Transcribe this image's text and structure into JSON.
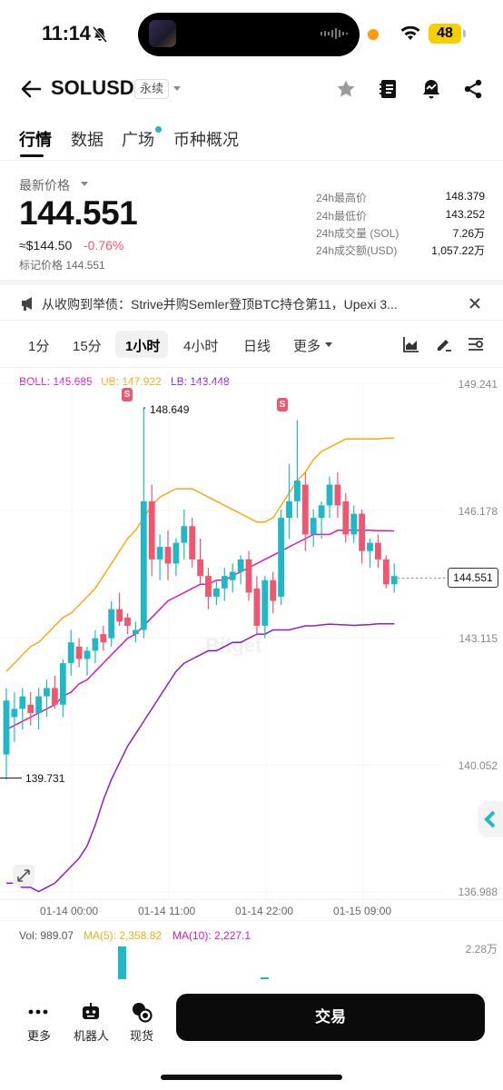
{
  "status_bar": {
    "time": "11:14",
    "battery": "48"
  },
  "header": {
    "symbol": "SOLUSD",
    "contract_type": "永续"
  },
  "tabs": [
    "行情",
    "数据",
    "广场",
    "币种概况"
  ],
  "price": {
    "label": "最新价格",
    "last": "144.551",
    "usd_equiv": "≈$144.50",
    "change": "-0.76%",
    "mark": "标记价格 144.551"
  },
  "stats": [
    {
      "key": "24h最高价",
      "value": "148.379"
    },
    {
      "key": "24h最低价",
      "value": "143.252"
    },
    {
      "key": "24h成交量 (SOL)",
      "value": "7.26万"
    },
    {
      "key": "24h成交额(USD)",
      "value": "1,057.22万"
    }
  ],
  "news_ticker": "从收购到举债：Strive并购Semler登顶BTC持仓第11，Upexi 3...",
  "intervals": [
    "1分",
    "15分",
    "1小时",
    "4小时",
    "日线",
    "更多"
  ],
  "legend": {
    "boll": "BOLL: 145.685",
    "ub": "UB: 147.922",
    "lb": "LB: 143.448"
  },
  "y_axis": [
    "149.241",
    "146.178",
    "143.115",
    "140.052",
    "136.988"
  ],
  "x_axis": [
    "01-14 00:00",
    "01-14 11:00",
    "01-14 22:00",
    "01-15 09:00"
  ],
  "annotations": {
    "high": "148.649",
    "low": "139.731",
    "current": "144.551",
    "signal": "S"
  },
  "watermark": "Bitget",
  "volume": {
    "vol": "Vol: 989.07",
    "ma5": "MA(5): 2,358.82",
    "ma10": "MA(10): 2,227.1",
    "max": "2.28万"
  },
  "bottom_bar": {
    "more": "更多",
    "robot": "机器人",
    "spot": "现货",
    "trade": "交易"
  },
  "colors": {
    "up": "#20b8c8",
    "down": "#f0566e",
    "ub": "#f2ac16",
    "boll": "#d81ab8",
    "lb": "#8a1ed6"
  },
  "chart_data": {
    "type": "candlestick",
    "title": "",
    "ylim": [
      136.988,
      149.241
    ],
    "x_ticks": [
      "01-14 00:00",
      "01-14 11:00",
      "01-14 22:00",
      "01-15 09:00"
    ],
    "candles": [
      [
        140.3,
        141.9,
        139.7,
        141.6
      ],
      [
        141.2,
        141.8,
        140.6,
        141.4
      ],
      [
        141.4,
        141.9,
        140.9,
        141.7
      ],
      [
        141.5,
        141.8,
        141.0,
        141.3
      ],
      [
        141.3,
        141.9,
        140.9,
        141.7
      ],
      [
        141.7,
        142.1,
        141.2,
        141.9
      ],
      [
        141.9,
        142.2,
        141.4,
        141.5
      ],
      [
        141.5,
        142.6,
        141.2,
        142.5
      ],
      [
        142.5,
        143.3,
        142.2,
        143.0
      ],
      [
        142.9,
        143.1,
        142.4,
        142.6
      ],
      [
        142.6,
        142.9,
        142.2,
        142.8
      ],
      [
        142.8,
        143.3,
        142.5,
        143.1
      ],
      [
        143.2,
        143.4,
        142.8,
        143.0
      ],
      [
        143.1,
        144.0,
        142.9,
        143.8
      ],
      [
        143.8,
        144.2,
        143.4,
        143.5
      ],
      [
        143.6,
        143.7,
        143.2,
        143.4
      ],
      [
        143.2,
        143.5,
        143.0,
        143.3
      ],
      [
        143.3,
        148.65,
        143.1,
        146.4
      ],
      [
        146.4,
        146.8,
        144.6,
        145.0
      ],
      [
        145.0,
        145.6,
        144.5,
        145.3
      ],
      [
        145.3,
        145.7,
        144.5,
        144.9
      ],
      [
        144.9,
        145.5,
        144.6,
        145.4
      ],
      [
        145.4,
        146.2,
        145.0,
        145.8
      ],
      [
        145.8,
        146.0,
        144.8,
        145.0
      ],
      [
        145.0,
        145.5,
        144.4,
        144.6
      ],
      [
        144.6,
        144.8,
        143.8,
        144.1
      ],
      [
        144.1,
        144.5,
        143.9,
        144.3
      ],
      [
        144.3,
        144.8,
        144.0,
        144.6
      ],
      [
        144.5,
        144.9,
        144.2,
        144.7
      ],
      [
        144.7,
        145.1,
        144.4,
        145.0
      ],
      [
        145.0,
        145.2,
        144.0,
        144.2
      ],
      [
        144.3,
        144.6,
        143.2,
        143.4
      ],
      [
        143.4,
        144.6,
        143.1,
        144.5
      ],
      [
        144.5,
        144.7,
        143.7,
        144.0
      ],
      [
        144.1,
        146.2,
        143.9,
        146.0
      ],
      [
        146.0,
        147.3,
        145.5,
        146.4
      ],
      [
        146.4,
        148.35,
        146.0,
        146.9
      ],
      [
        146.8,
        147.1,
        145.2,
        145.6
      ],
      [
        145.6,
        146.2,
        145.3,
        146.0
      ],
      [
        146.0,
        146.4,
        145.5,
        146.3
      ],
      [
        146.3,
        147.0,
        146.0,
        146.8
      ],
      [
        146.8,
        147.1,
        146.0,
        146.3
      ],
      [
        146.4,
        146.6,
        145.4,
        145.6
      ],
      [
        145.6,
        146.3,
        145.4,
        146.1
      ],
      [
        146.1,
        146.2,
        144.9,
        145.2
      ],
      [
        145.2,
        145.5,
        144.8,
        145.4
      ],
      [
        145.4,
        145.6,
        144.8,
        145.0
      ],
      [
        145.0,
        145.1,
        144.3,
        144.4
      ],
      [
        144.4,
        144.9,
        144.2,
        144.6
      ]
    ],
    "series": [
      {
        "name": "UB",
        "values": [
          142.3,
          142.5,
          142.7,
          142.9,
          143.0,
          143.2,
          143.4,
          143.6,
          143.7,
          143.9,
          144.1,
          144.3,
          144.6,
          144.9,
          145.2,
          145.5,
          145.7,
          146.0,
          146.3,
          146.5,
          146.6,
          146.7,
          146.7,
          146.7,
          146.6,
          146.5,
          146.4,
          146.3,
          146.2,
          146.1,
          146.0,
          145.9,
          145.9,
          146.0,
          146.3,
          146.6,
          146.9,
          147.1,
          147.4,
          147.6,
          147.7,
          147.8,
          147.9,
          147.9,
          147.9,
          147.9,
          147.9,
          147.92,
          147.92
        ]
      },
      {
        "name": "BOLL",
        "values": [
          140.9,
          141.0,
          141.1,
          141.2,
          141.3,
          141.4,
          141.5,
          141.7,
          141.8,
          142.0,
          142.1,
          142.3,
          142.5,
          142.7,
          142.9,
          143.1,
          143.2,
          143.4,
          143.6,
          143.8,
          144.0,
          144.1,
          144.2,
          144.3,
          144.4,
          144.4,
          144.5,
          144.5,
          144.6,
          144.7,
          144.8,
          144.9,
          145.0,
          145.1,
          145.2,
          145.3,
          145.4,
          145.5,
          145.6,
          145.6,
          145.6,
          145.7,
          145.7,
          145.7,
          145.7,
          145.7,
          145.69,
          145.69,
          145.685
        ]
      },
      {
        "name": "LB",
        "values": [
          137.2,
          137.2,
          137.1,
          137.1,
          137.0,
          137.1,
          137.2,
          137.4,
          137.6,
          137.8,
          138.1,
          138.6,
          139.2,
          139.7,
          140.1,
          140.5,
          140.8,
          141.1,
          141.4,
          141.7,
          142.0,
          142.3,
          142.5,
          142.6,
          142.7,
          142.8,
          142.8,
          142.9,
          143.0,
          143.0,
          143.1,
          143.2,
          143.2,
          143.3,
          143.3,
          143.3,
          143.35,
          143.4,
          143.4,
          143.42,
          143.44,
          143.43,
          143.42,
          143.41,
          143.42,
          143.43,
          143.45,
          143.45,
          143.448
        ]
      }
    ]
  }
}
